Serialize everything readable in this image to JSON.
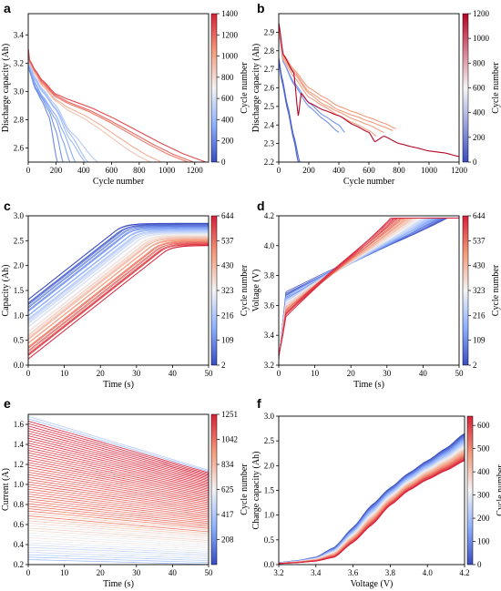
{
  "chart_data": [
    {
      "panel": "a",
      "type": "line",
      "xlabel": "Cycle number",
      "ylabel": "Discharge capacity (Ah)",
      "xlim": [
        0,
        1300
      ],
      "ylim": [
        2.5,
        3.55
      ],
      "xticks": [
        0,
        200,
        400,
        600,
        800,
        1000,
        1200
      ],
      "yticks": [
        2.6,
        2.8,
        3.0,
        3.2,
        3.4
      ],
      "colorbar": {
        "label": "Cycle number",
        "ticks": [
          0,
          200,
          400,
          600,
          800,
          1000,
          1200,
          1400
        ],
        "range": [
          0,
          1400
        ]
      },
      "series": [
        {
          "life": 1280,
          "x": [
            0,
            10,
            50,
            100,
            200,
            300,
            1280
          ],
          "y": [
            3.3,
            3.22,
            3.15,
            3.08,
            2.98,
            2.94,
            2.5
          ]
        },
        {
          "life": 1190,
          "x": [
            0,
            10,
            50,
            100,
            200,
            300,
            1190
          ],
          "y": [
            3.3,
            3.22,
            3.15,
            3.07,
            2.97,
            2.92,
            2.5
          ]
        },
        {
          "life": 1150,
          "x": [
            0,
            10,
            50,
            100,
            200,
            300,
            1150
          ],
          "y": [
            3.29,
            3.21,
            3.14,
            3.06,
            2.96,
            2.91,
            2.5
          ]
        },
        {
          "life": 960,
          "x": [
            0,
            10,
            50,
            100,
            200,
            300,
            960
          ],
          "y": [
            3.29,
            3.21,
            3.13,
            3.05,
            2.94,
            2.88,
            2.5
          ]
        },
        {
          "life": 880,
          "x": [
            0,
            10,
            50,
            100,
            200,
            300,
            880
          ],
          "y": [
            3.28,
            3.2,
            3.12,
            3.04,
            2.93,
            2.86,
            2.5
          ]
        },
        {
          "life": 500,
          "x": [
            0,
            10,
            50,
            100,
            200,
            300,
            500
          ],
          "y": [
            3.27,
            3.19,
            3.1,
            3.02,
            2.9,
            2.72,
            2.5
          ]
        },
        {
          "life": 430,
          "x": [
            0,
            10,
            50,
            100,
            200,
            300,
            430
          ],
          "y": [
            3.26,
            3.18,
            3.09,
            3.01,
            2.88,
            2.7,
            2.5
          ]
        },
        {
          "life": 410,
          "x": [
            0,
            10,
            50,
            100,
            200,
            300,
            410
          ],
          "y": [
            3.26,
            3.18,
            3.08,
            3.0,
            2.87,
            2.66,
            2.5
          ]
        },
        {
          "life": 340,
          "x": [
            0,
            10,
            50,
            100,
            200,
            250,
            340
          ],
          "y": [
            3.25,
            3.17,
            3.06,
            2.97,
            2.83,
            2.72,
            2.5
          ]
        },
        {
          "life": 300,
          "x": [
            0,
            10,
            50,
            100,
            200,
            250,
            300
          ],
          "y": [
            3.24,
            3.16,
            3.05,
            2.96,
            2.8,
            2.65,
            2.5
          ]
        },
        {
          "life": 250,
          "x": [
            0,
            10,
            50,
            100,
            150,
            200,
            250
          ],
          "y": [
            3.24,
            3.15,
            3.03,
            2.95,
            2.86,
            2.72,
            2.5
          ]
        },
        {
          "life": 210,
          "x": [
            0,
            10,
            50,
            100,
            150,
            210
          ],
          "y": [
            3.23,
            3.14,
            3.02,
            2.93,
            2.82,
            2.5
          ]
        }
      ]
    },
    {
      "panel": "b",
      "type": "line",
      "xlabel": "Cycle number",
      "ylabel": "Discharge capacity (Ah)",
      "xlim": [
        0,
        1200
      ],
      "ylim": [
        2.2,
        3.0
      ],
      "xticks": [
        0,
        200,
        400,
        600,
        800,
        1000,
        1200
      ],
      "yticks": [
        2.2,
        2.3,
        2.4,
        2.5,
        2.6,
        2.7,
        2.8,
        2.9
      ],
      "colorbar": {
        "label": "Cycle number",
        "ticks": [
          0,
          200,
          400,
          600,
          800,
          1000,
          1200
        ],
        "range": [
          0,
          1200
        ]
      },
      "series": [
        {
          "life": 1200,
          "x": [
            0,
            30,
            100,
            130,
            150,
            200,
            300,
            400,
            500,
            600,
            640,
            700,
            800,
            900,
            1000,
            1100,
            1200
          ],
          "y": [
            2.95,
            2.78,
            2.68,
            2.45,
            2.57,
            2.52,
            2.48,
            2.45,
            2.4,
            2.36,
            2.31,
            2.34,
            2.3,
            2.28,
            2.26,
            2.25,
            2.23
          ]
        },
        {
          "life": 780,
          "x": [
            0,
            30,
            100,
            200,
            300,
            400,
            500,
            600,
            700,
            780
          ],
          "y": [
            2.93,
            2.78,
            2.7,
            2.6,
            2.55,
            2.5,
            2.47,
            2.44,
            2.41,
            2.38
          ]
        },
        {
          "life": 760,
          "x": [
            0,
            30,
            100,
            200,
            300,
            400,
            500,
            600,
            700,
            760
          ],
          "y": [
            2.92,
            2.77,
            2.69,
            2.58,
            2.53,
            2.48,
            2.45,
            2.42,
            2.39,
            2.37
          ]
        },
        {
          "life": 700,
          "x": [
            0,
            30,
            100,
            200,
            300,
            400,
            500,
            600,
            700
          ],
          "y": [
            2.92,
            2.76,
            2.68,
            2.57,
            2.51,
            2.47,
            2.43,
            2.4,
            2.36
          ]
        },
        {
          "life": 650,
          "x": [
            0,
            30,
            100,
            200,
            300,
            400,
            500,
            600,
            650
          ],
          "y": [
            2.91,
            2.75,
            2.66,
            2.55,
            2.5,
            2.45,
            2.41,
            2.37,
            2.34
          ]
        },
        {
          "life": 440,
          "x": [
            0,
            30,
            100,
            200,
            300,
            400,
            440
          ],
          "y": [
            2.9,
            2.74,
            2.63,
            2.52,
            2.45,
            2.4,
            2.36
          ]
        },
        {
          "life": 400,
          "x": [
            0,
            30,
            100,
            200,
            300,
            400
          ],
          "y": [
            2.9,
            2.74,
            2.62,
            2.5,
            2.43,
            2.36
          ]
        },
        {
          "life": 140,
          "x": [
            0,
            20,
            60,
            100,
            140
          ],
          "y": [
            2.76,
            2.66,
            2.5,
            2.34,
            2.2
          ]
        },
        {
          "life": 130,
          "x": [
            0,
            20,
            60,
            100,
            130
          ],
          "y": [
            2.74,
            2.64,
            2.48,
            2.32,
            2.2
          ]
        }
      ]
    },
    {
      "panel": "c",
      "type": "line",
      "xlabel": "Time (s)",
      "ylabel": "Capacity (Ah)",
      "xlim": [
        0,
        50
      ],
      "ylim": [
        0.0,
        3.0
      ],
      "xticks": [
        0,
        10,
        20,
        30,
        40,
        50
      ],
      "yticks": [
        0.0,
        0.5,
        1.0,
        1.5,
        2.0,
        2.5,
        3.0
      ],
      "colorbar": {
        "label": "Cycle number",
        "ticks": [
          2,
          109,
          216,
          323,
          430,
          537,
          644
        ],
        "range": [
          2,
          644
        ]
      },
      "series_model": {
        "cycles": [
          2,
          644
        ],
        "start_y": [
          1.32,
          0.12
        ],
        "slope_per_s": 0.057,
        "plateau_y": [
          2.85,
          2.4
        ]
      }
    },
    {
      "panel": "d",
      "type": "line",
      "xlabel": "Time (s)",
      "ylabel": "Voltage (V)",
      "xlim": [
        0,
        50
      ],
      "ylim": [
        3.2,
        4.2
      ],
      "xticks": [
        0,
        10,
        20,
        30,
        40,
        50
      ],
      "yticks": [
        3.2,
        3.4,
        3.6,
        3.8,
        4.0,
        4.2
      ],
      "colorbar": {
        "label": "Cycle number",
        "ticks": [
          2,
          109,
          216,
          323,
          430,
          537,
          644
        ],
        "range": [
          2,
          644
        ]
      },
      "series_model": {
        "cycles": [
          2,
          644
        ],
        "start_y": [
          3.68,
          3.53
        ],
        "reach_max_s": [
          47,
          31
        ]
      }
    },
    {
      "panel": "e",
      "type": "line",
      "xlabel": "Time (s)",
      "ylabel": "Current (A)",
      "xlim": [
        0,
        50
      ],
      "ylim": [
        0.2,
        1.7
      ],
      "xticks": [
        0,
        10,
        20,
        30,
        40,
        50
      ],
      "yticks": [
        0.2,
        0.4,
        0.6,
        0.8,
        1.0,
        1.2,
        1.4,
        1.6
      ],
      "colorbar": {
        "label": "Cycle number",
        "ticks": [
          208,
          417,
          625,
          834,
          1042,
          1251
        ],
        "range": [
          0,
          1251
        ]
      },
      "series_model": {
        "cycles": [
          0,
          1251
        ],
        "start_y_range": [
          0.25,
          1.68
        ],
        "decay_fraction_per_50s": 0.32
      }
    },
    {
      "panel": "f",
      "type": "line",
      "xlabel": "Voltage (V)",
      "ylabel": "Charge capacity (Ah)",
      "xlim": [
        3.2,
        4.2
      ],
      "ylim": [
        0.0,
        3.0
      ],
      "xticks": [
        3.2,
        3.4,
        3.6,
        3.8,
        4.0,
        4.2
      ],
      "yticks": [
        0.0,
        0.5,
        1.0,
        1.5,
        2.0,
        2.5,
        3.0
      ],
      "colorbar": {
        "label": "Cycle number",
        "ticks": [
          0,
          100,
          200,
          300,
          400,
          500,
          600
        ],
        "range": [
          0,
          640
        ]
      },
      "series_model": {
        "cycles": [
          0,
          640
        ],
        "early": {
          "x": [
            3.2,
            3.3,
            3.4,
            3.5,
            3.6,
            3.7,
            3.8,
            3.9,
            4.0,
            4.1,
            4.2
          ],
          "y": [
            0.04,
            0.08,
            0.15,
            0.35,
            0.75,
            1.2,
            1.55,
            1.85,
            2.1,
            2.35,
            2.65
          ]
        },
        "late": {
          "x": [
            3.2,
            3.3,
            3.4,
            3.5,
            3.6,
            3.7,
            3.8,
            3.9,
            4.0,
            4.1,
            4.2
          ],
          "y": [
            0.02,
            0.04,
            0.07,
            0.15,
            0.45,
            0.8,
            1.2,
            1.5,
            1.72,
            1.9,
            2.1
          ]
        }
      }
    }
  ],
  "panels": [
    {
      "letter": "a"
    },
    {
      "letter": "b"
    },
    {
      "letter": "c"
    },
    {
      "letter": "d"
    },
    {
      "letter": "e"
    },
    {
      "letter": "f"
    }
  ]
}
